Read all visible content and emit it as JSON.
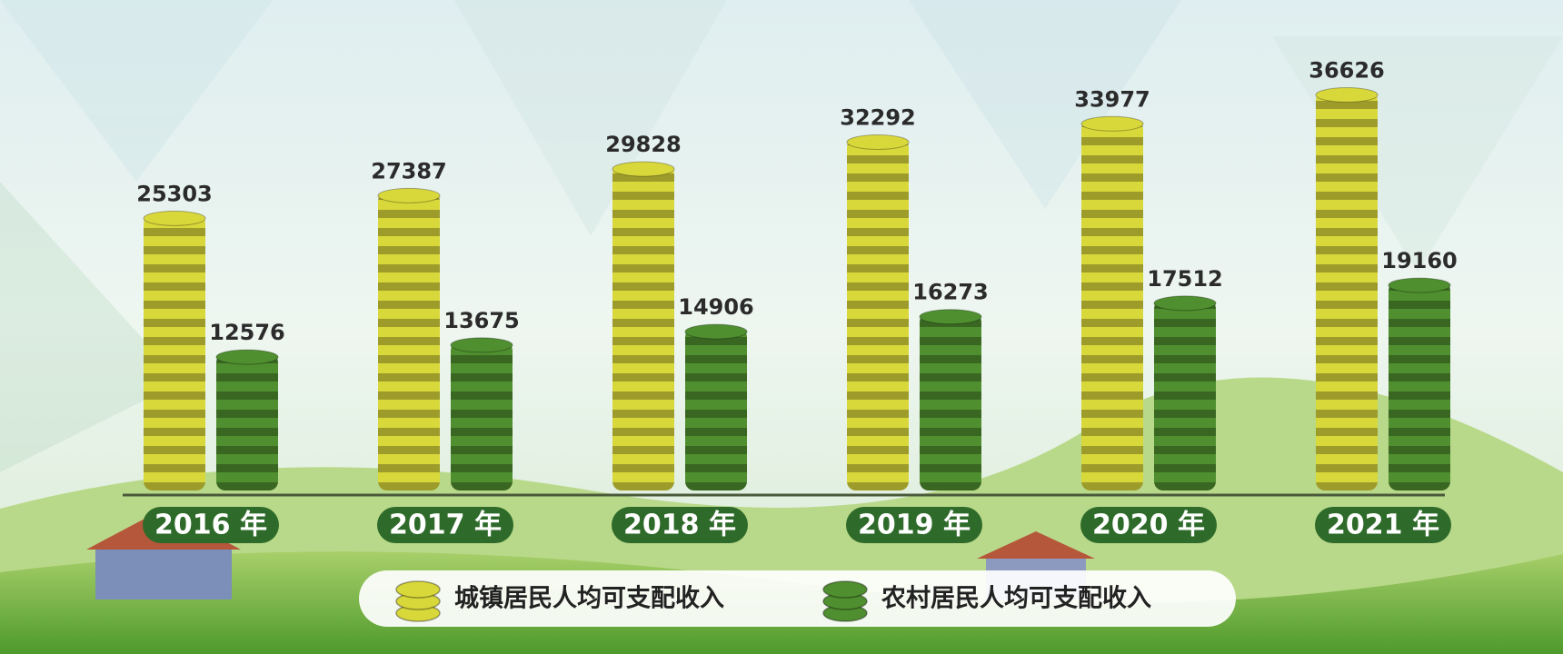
{
  "chart_data": {
    "type": "bar",
    "categories": [
      "2016 年",
      "2017 年",
      "2018 年",
      "2019 年",
      "2020 年",
      "2021 年"
    ],
    "series": [
      {
        "name": "城镇居民人均可支配收入",
        "color": "#d9d83b",
        "values": [
          25303,
          27387,
          29828,
          32292,
          33977,
          36626
        ]
      },
      {
        "name": "农村居民人均可支配收入",
        "color": "#4f8f2f",
        "values": [
          12576,
          13675,
          14906,
          16273,
          17512,
          19160
        ]
      }
    ]
  }
}
